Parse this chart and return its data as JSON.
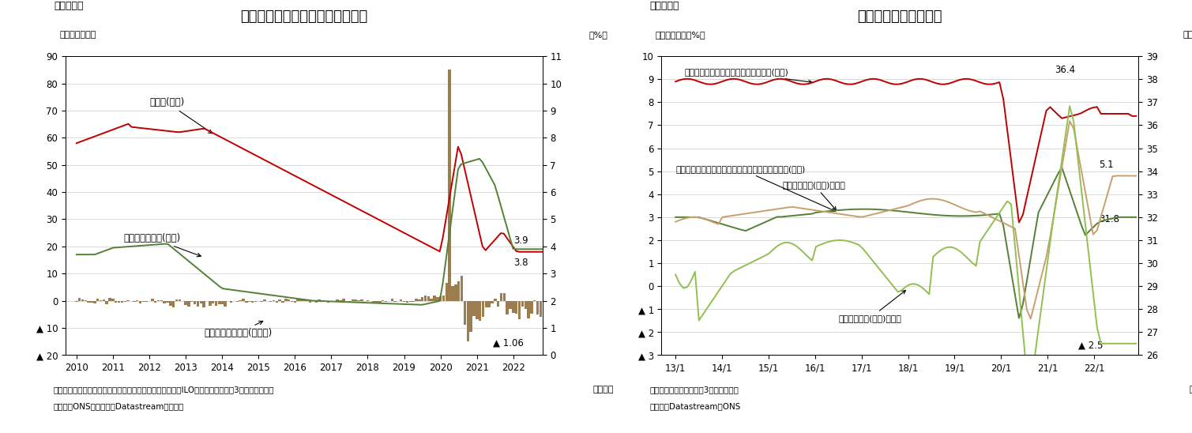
{
  "fig1": {
    "title": "英国の失業保険申請件数、失業率",
    "title_label": "（図表１）",
    "ylabel_left": "（件数、万件）",
    "ylabel_right": "（%）",
    "xlabel": "（月次）",
    "note1": "（注）季節調整値、割合＝申請者／（雇用者＋申請者）。ILO基準失業率は後方3か月移動平均。",
    "note2": "（資料）ONSのデータをDatastreamより取得",
    "ylim_left": [
      -20,
      90
    ],
    "ylim_right": [
      0,
      11
    ],
    "colors": {
      "unemployment_rate": "#c00000",
      "claimant_ratio": "#538135",
      "bar_color": "#9b7d4e"
    }
  },
  "fig2": {
    "title": "賃金・労働時間の推移",
    "title_label": "（図表２）",
    "ylabel_left": "（前年同期比、%）",
    "ylabel_right": "（時間）",
    "xlabel": "（月次）",
    "note1": "（注）季節調整値、後方3か月移動平均",
    "note2": "（資料）Datastream、ONS",
    "ylim_left": [
      -3,
      10
    ],
    "ylim_right": [
      26,
      39
    ],
    "xtick_labels": [
      "13/1",
      "14/1",
      "15/1",
      "16/1",
      "17/1",
      "18/1",
      "19/1",
      "20/1",
      "21/1",
      "22/1"
    ],
    "colors": {
      "fulltime_hours": "#c00000",
      "parttime_hours": "#538135",
      "nominal_wage": "#c8a070",
      "real_wage": "#92c050"
    }
  }
}
